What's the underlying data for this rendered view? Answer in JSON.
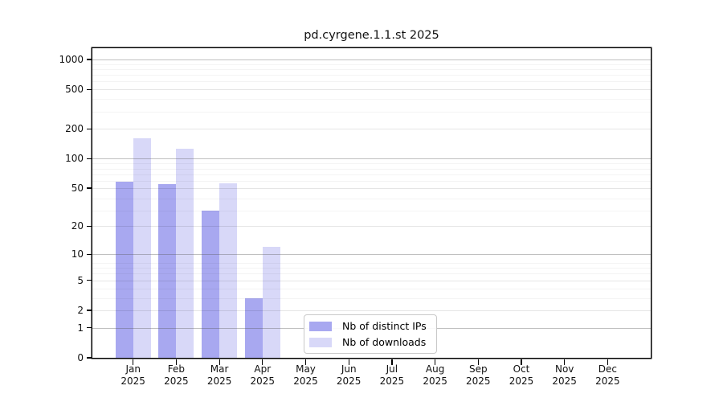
{
  "chart_data": {
    "type": "bar",
    "title": "pd.cyrgene.1.1.st 2025",
    "year": "2025",
    "categories": [
      "Jan",
      "Feb",
      "Mar",
      "Apr",
      "May",
      "Jun",
      "Jul",
      "Aug",
      "Sep",
      "Oct",
      "Nov",
      "Dec"
    ],
    "series": [
      {
        "name": "Nb of distinct IPs",
        "color": "#a8a8f0",
        "values": [
          58,
          55,
          29,
          3,
          0,
          0,
          0,
          0,
          0,
          0,
          0,
          0
        ]
      },
      {
        "name": "Nb of downloads",
        "color": "#d8d8f8",
        "values": [
          161,
          125,
          56,
          12,
          0,
          0,
          0,
          0,
          0,
          0,
          0,
          0
        ]
      }
    ],
    "y_ticks": [
      0,
      1,
      2,
      5,
      10,
      20,
      50,
      100,
      200,
      500,
      1000
    ],
    "y_scale": "log10(value+1)",
    "ylim": [
      0,
      1300
    ],
    "xlabel": "",
    "ylabel": "",
    "grid": true,
    "legend_position": "lower center",
    "background_color": "#ffffff",
    "axis_color": "#000000"
  }
}
